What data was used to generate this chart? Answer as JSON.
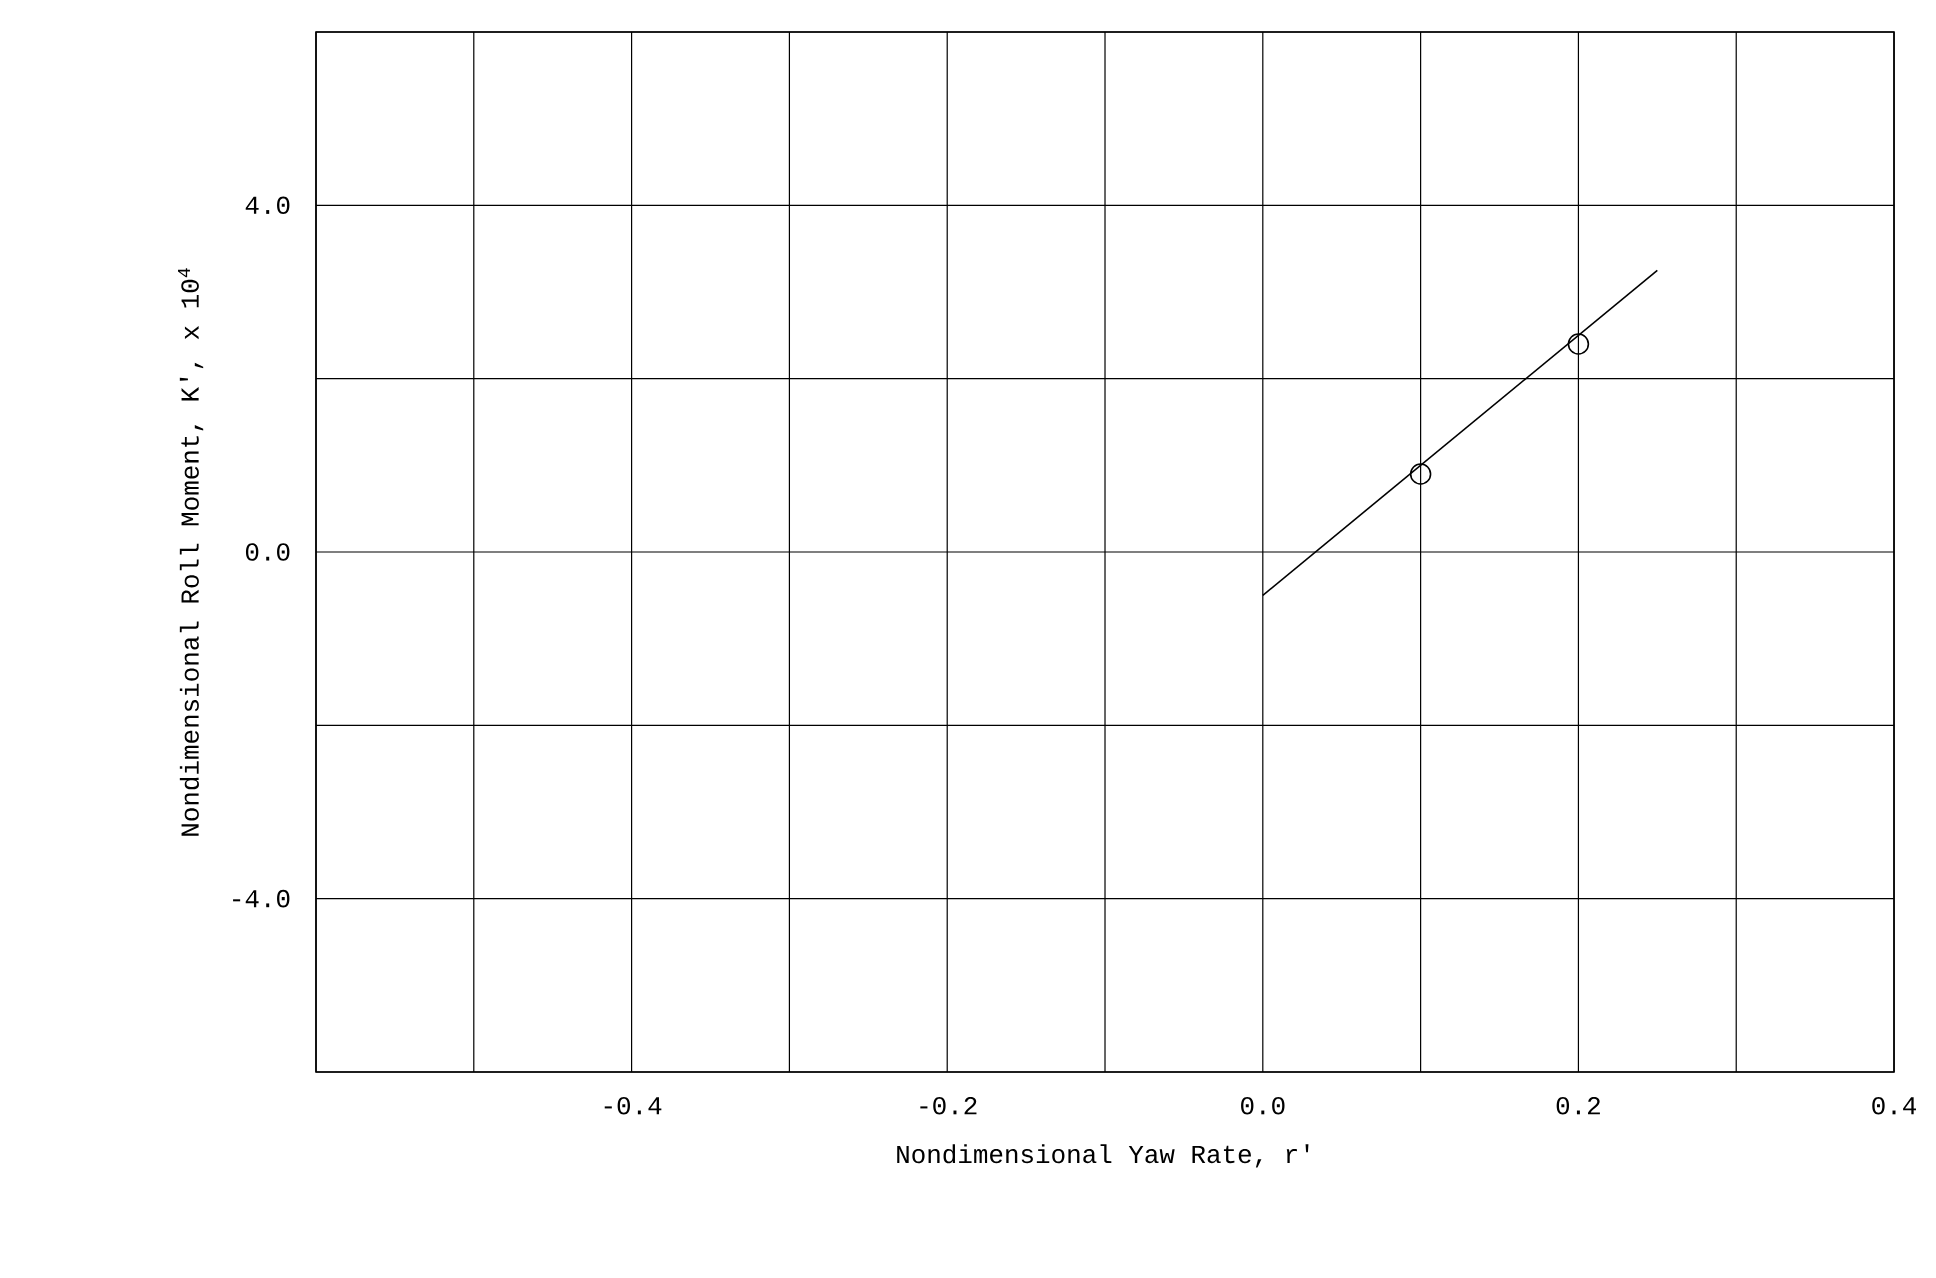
{
  "chart_data": {
    "type": "scatter",
    "xlabel": "Nondimensional Yaw Rate, r'",
    "ylabel": "Nondimensional Roll Moment, K', x 10$^{4}$",
    "xlim": [
      -0.6,
      0.4
    ],
    "ylim": [
      -6,
      6
    ],
    "xticks": [
      {
        "value": -0.6,
        "label": null
      },
      {
        "value": -0.5,
        "label": null
      },
      -0.4,
      {
        "value": -0.3,
        "label": null
      },
      -0.2,
      {
        "value": -0.1,
        "label": null
      },
      {
        "value": 0,
        "label": "0.0"
      },
      {
        "value": 0.1,
        "label": null
      },
      0.2,
      {
        "value": 0.3,
        "label": null
      },
      0.4
    ],
    "yticks": [
      {
        "value": -6,
        "label": null
      },
      {
        "value": -4,
        "label": "-4.0"
      },
      {
        "value": -2,
        "label": null
      },
      {
        "value": 0,
        "label": "0.0"
      },
      {
        "value": 2,
        "label": null
      },
      {
        "value": 4,
        "label": "4.0"
      },
      {
        "value": 6,
        "label": null
      }
    ],
    "grid": true,
    "series": [
      {
        "marker": "circle",
        "color": "#000000",
        "x": [
          0.1,
          0.2
        ],
        "values": [
          0.9,
          2.4
        ]
      },
      {
        "type": "line",
        "marker": "none",
        "color": "#000000",
        "x": [
          0.0,
          0.25
        ],
        "values": [
          -0.5,
          3.25
        ]
      }
    ]
  }
}
